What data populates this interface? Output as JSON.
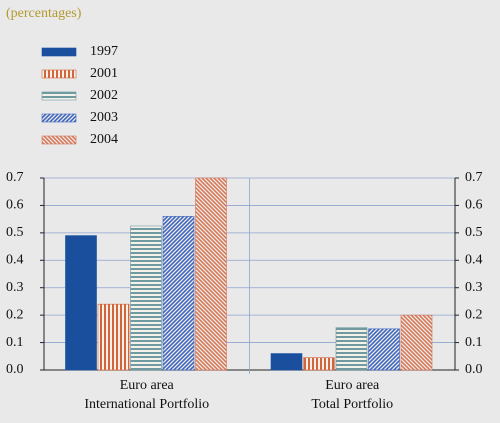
{
  "chart_data": {
    "type": "bar",
    "subtitle": "(percentages)",
    "categories": [
      "Euro area\nInternational Portfolio",
      "Euro area\nTotal  Portfolio"
    ],
    "series": [
      {
        "name": "1997",
        "color": "#1a4f9e",
        "hatch": "solid",
        "values": [
          0.49,
          0.06
        ]
      },
      {
        "name": "2001",
        "color": "#d4643c",
        "hatch": "vertical",
        "values": [
          0.24,
          0.045
        ]
      },
      {
        "name": "2002",
        "color": "#6f9aa0",
        "hatch": "horizontal",
        "values": [
          0.525,
          0.155
        ]
      },
      {
        "name": "2003",
        "color": "#3f66c0",
        "hatch": "diagonal-up",
        "values": [
          0.56,
          0.15
        ]
      },
      {
        "name": "2004",
        "color": "#d4775a",
        "hatch": "diagonal-down",
        "values": [
          0.7,
          0.2
        ]
      }
    ],
    "ylim": [
      0,
      0.7
    ],
    "yticks": [
      {
        "value": 0,
        "label": "0.0"
      },
      0.1,
      0.2,
      0.3,
      0.4,
      0.5,
      0.6,
      0.7
    ],
    "y2lim": [
      0,
      0.7
    ],
    "y2ticks": [
      {
        "value": 0,
        "label": "0.0"
      },
      0.1,
      0.2,
      0.3,
      0.4,
      0.5,
      0.6,
      0.7
    ],
    "grid": true,
    "legend": "top-left"
  }
}
